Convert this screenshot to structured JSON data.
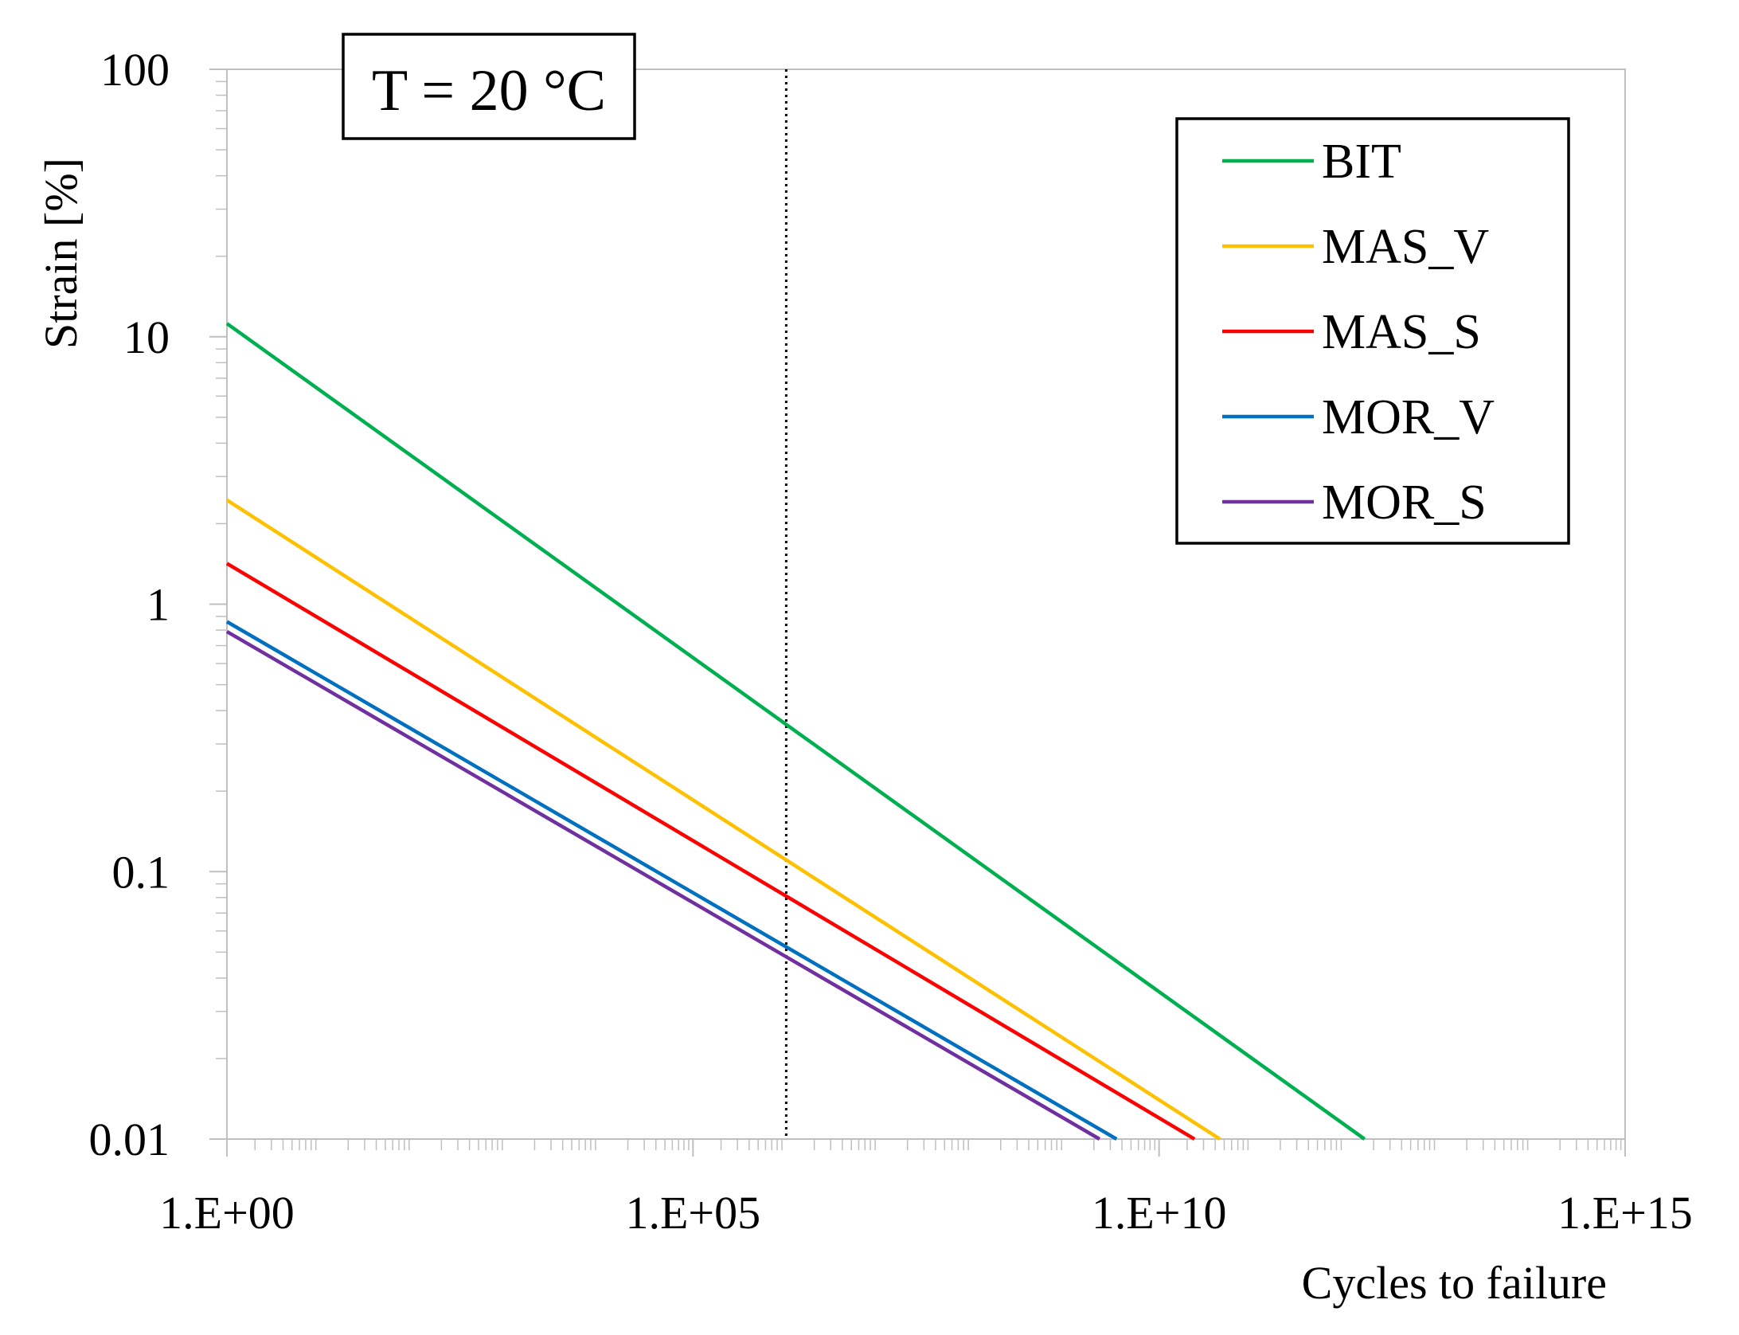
{
  "chart_data": {
    "type": "line",
    "title": "",
    "annotation": "T = 20 °C",
    "xlabel": "Cycles to failure",
    "ylabel": "Strain [%]",
    "x_scale": "log",
    "y_scale": "log",
    "xlim": [
      1,
      1000000000000000.0
    ],
    "ylim": [
      0.01,
      100
    ],
    "x_ticks": [
      {
        "value": 1,
        "label": "1.E+00"
      },
      {
        "value": 100000,
        "label": "1.E+05"
      },
      {
        "value": 10000000000,
        "label": "1.E+10"
      },
      {
        "value": 1000000000000000,
        "label": "1.E+15"
      }
    ],
    "y_ticks": [
      {
        "value": 0.01,
        "label": "0.01"
      },
      {
        "value": 0.1,
        "label": "0.1"
      },
      {
        "value": 1,
        "label": "1"
      },
      {
        "value": 10,
        "label": "10"
      },
      {
        "value": 100,
        "label": "100"
      }
    ],
    "reference_line": {
      "orientation": "vertical",
      "x": 1000000,
      "style": "dotted"
    },
    "legend_position": "top-right",
    "series": [
      {
        "name": "BIT",
        "color": "#00b050",
        "x": [
          1,
          1600000000000.0
        ],
        "y": [
          11.2,
          0.01
        ]
      },
      {
        "name": "MAS_V",
        "color": "#ffc000",
        "x": [
          1,
          45000000000.0
        ],
        "y": [
          2.45,
          0.01
        ]
      },
      {
        "name": "MAS_S",
        "color": "#ff0000",
        "x": [
          1,
          24000000000.0
        ],
        "y": [
          1.42,
          0.01
        ]
      },
      {
        "name": "MOR_V",
        "color": "#0070c0",
        "x": [
          1,
          3500000000.0
        ],
        "y": [
          0.86,
          0.01
        ]
      },
      {
        "name": "MOR_S",
        "color": "#7030a0",
        "x": [
          1,
          2300000000.0
        ],
        "y": [
          0.79,
          0.01
        ]
      }
    ]
  }
}
